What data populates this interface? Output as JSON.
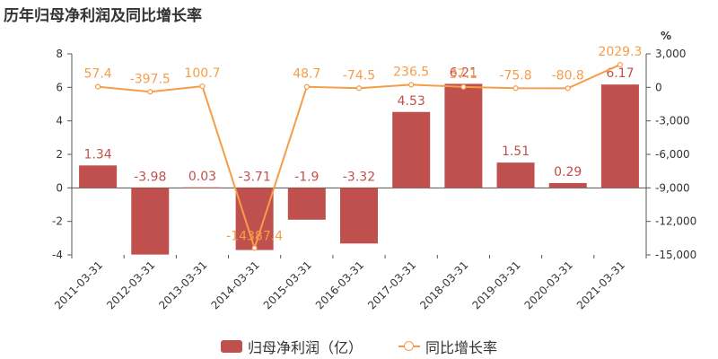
{
  "chart_data": {
    "type": "bar",
    "title": "历年归母净利润及同比增长率",
    "categories": [
      "2011-03-31",
      "2012-03-31",
      "2013-03-31",
      "2014-03-31",
      "2015-03-31",
      "2016-03-31",
      "2017-03-31",
      "2018-03-31",
      "2019-03-31",
      "2020-03-31",
      "2021-03-31"
    ],
    "series": [
      {
        "name": "归母净利润（亿）",
        "type": "bar",
        "axis": "left",
        "values": [
          1.34,
          -3.98,
          0.03,
          -3.71,
          -1.9,
          -3.32,
          4.53,
          6.21,
          1.51,
          0.29,
          6.17
        ],
        "labels": [
          "1.34",
          "-3.98",
          "0.03",
          "-3.71",
          "-1.9",
          "-3.32",
          "4.53",
          "6.21",
          "1.51",
          "0.29",
          "6.17"
        ],
        "color": "#c0504d"
      },
      {
        "name": "同比增长率",
        "type": "line",
        "axis": "right",
        "values": [
          57.4,
          -397.5,
          100.7,
          -14387.4,
          48.7,
          -74.5,
          236.5,
          37.1,
          -75.8,
          -80.8,
          2029.3
        ],
        "labels": [
          "57.4",
          "-397.5",
          "100.7",
          "-14387.4",
          "48.7",
          "-74.5",
          "236.5",
          "37.1",
          "-75.8",
          "-80.8",
          "2029.3"
        ],
        "color": "#f59d4a"
      }
    ],
    "y_left": {
      "range": [
        -4,
        8
      ],
      "ticks": [
        "-4",
        "-2",
        "0",
        "2",
        "4",
        "6",
        "8"
      ]
    },
    "y_right": {
      "range": [
        -15000,
        3000
      ],
      "ticks": [
        "-15,000",
        "-12,000",
        "-9,000",
        "-6,000",
        "-3,000",
        "0",
        "3,000"
      ],
      "unit": "%"
    },
    "grid": false,
    "legend": "bottom"
  }
}
